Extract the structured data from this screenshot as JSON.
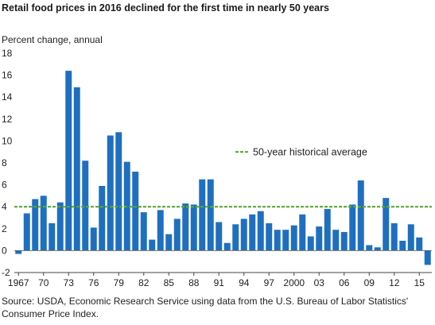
{
  "chart_data": {
    "type": "bar",
    "title": "Retail food prices in 2016 declined for the first time in nearly 50 years",
    "ylabel": "Percent change, annual",
    "source": "Source: USDA, Economic Research Service using data from the U.S. Bureau of Labor Statistics' Consumer Price Index.",
    "ylim": [
      -2,
      18
    ],
    "y_ticks": [
      -2,
      0,
      2,
      4,
      6,
      8,
      10,
      12,
      14,
      16,
      18
    ],
    "x_tick_labels": [
      {
        "year": 1967,
        "label": "1967"
      },
      {
        "year": 1970,
        "label": "70"
      },
      {
        "year": 1973,
        "label": "73"
      },
      {
        "year": 1976,
        "label": "76"
      },
      {
        "year": 1979,
        "label": "79"
      },
      {
        "year": 1982,
        "label": "82"
      },
      {
        "year": 1985,
        "label": "85"
      },
      {
        "year": 1988,
        "label": "88"
      },
      {
        "year": 1991,
        "label": "91"
      },
      {
        "year": 1994,
        "label": "94"
      },
      {
        "year": 1997,
        "label": "97"
      },
      {
        "year": 2000,
        "label": "2000"
      },
      {
        "year": 2003,
        "label": "03"
      },
      {
        "year": 2006,
        "label": "06"
      },
      {
        "year": 2009,
        "label": "09"
      },
      {
        "year": 2012,
        "label": "12"
      },
      {
        "year": 2015,
        "label": "15"
      }
    ],
    "categories": [
      1967,
      1968,
      1969,
      1970,
      1971,
      1972,
      1973,
      1974,
      1975,
      1976,
      1977,
      1978,
      1979,
      1980,
      1981,
      1982,
      1983,
      1984,
      1985,
      1986,
      1987,
      1988,
      1989,
      1990,
      1991,
      1992,
      1993,
      1994,
      1995,
      1996,
      1997,
      1998,
      1999,
      2000,
      2001,
      2002,
      2003,
      2004,
      2005,
      2006,
      2007,
      2008,
      2009,
      2010,
      2011,
      2012,
      2013,
      2014,
      2015,
      2016
    ],
    "values": [
      -0.3,
      3.4,
      4.7,
      5.0,
      2.5,
      4.4,
      16.4,
      14.9,
      8.2,
      2.1,
      5.9,
      10.5,
      10.8,
      8.1,
      7.2,
      3.5,
      1.0,
      3.7,
      1.5,
      2.9,
      4.3,
      4.2,
      6.5,
      6.5,
      2.6,
      0.7,
      2.4,
      2.9,
      3.3,
      3.6,
      2.5,
      1.9,
      1.9,
      2.3,
      3.3,
      1.3,
      2.2,
      3.8,
      1.9,
      1.7,
      4.2,
      6.4,
      0.5,
      0.3,
      4.8,
      2.5,
      0.9,
      2.4,
      1.2,
      -1.3
    ],
    "average": {
      "value": 4.0,
      "label": "50-year historical average",
      "color": "#5aa832"
    },
    "bar_color": "#1f6fbf",
    "grid": false,
    "legend": "center-right"
  }
}
